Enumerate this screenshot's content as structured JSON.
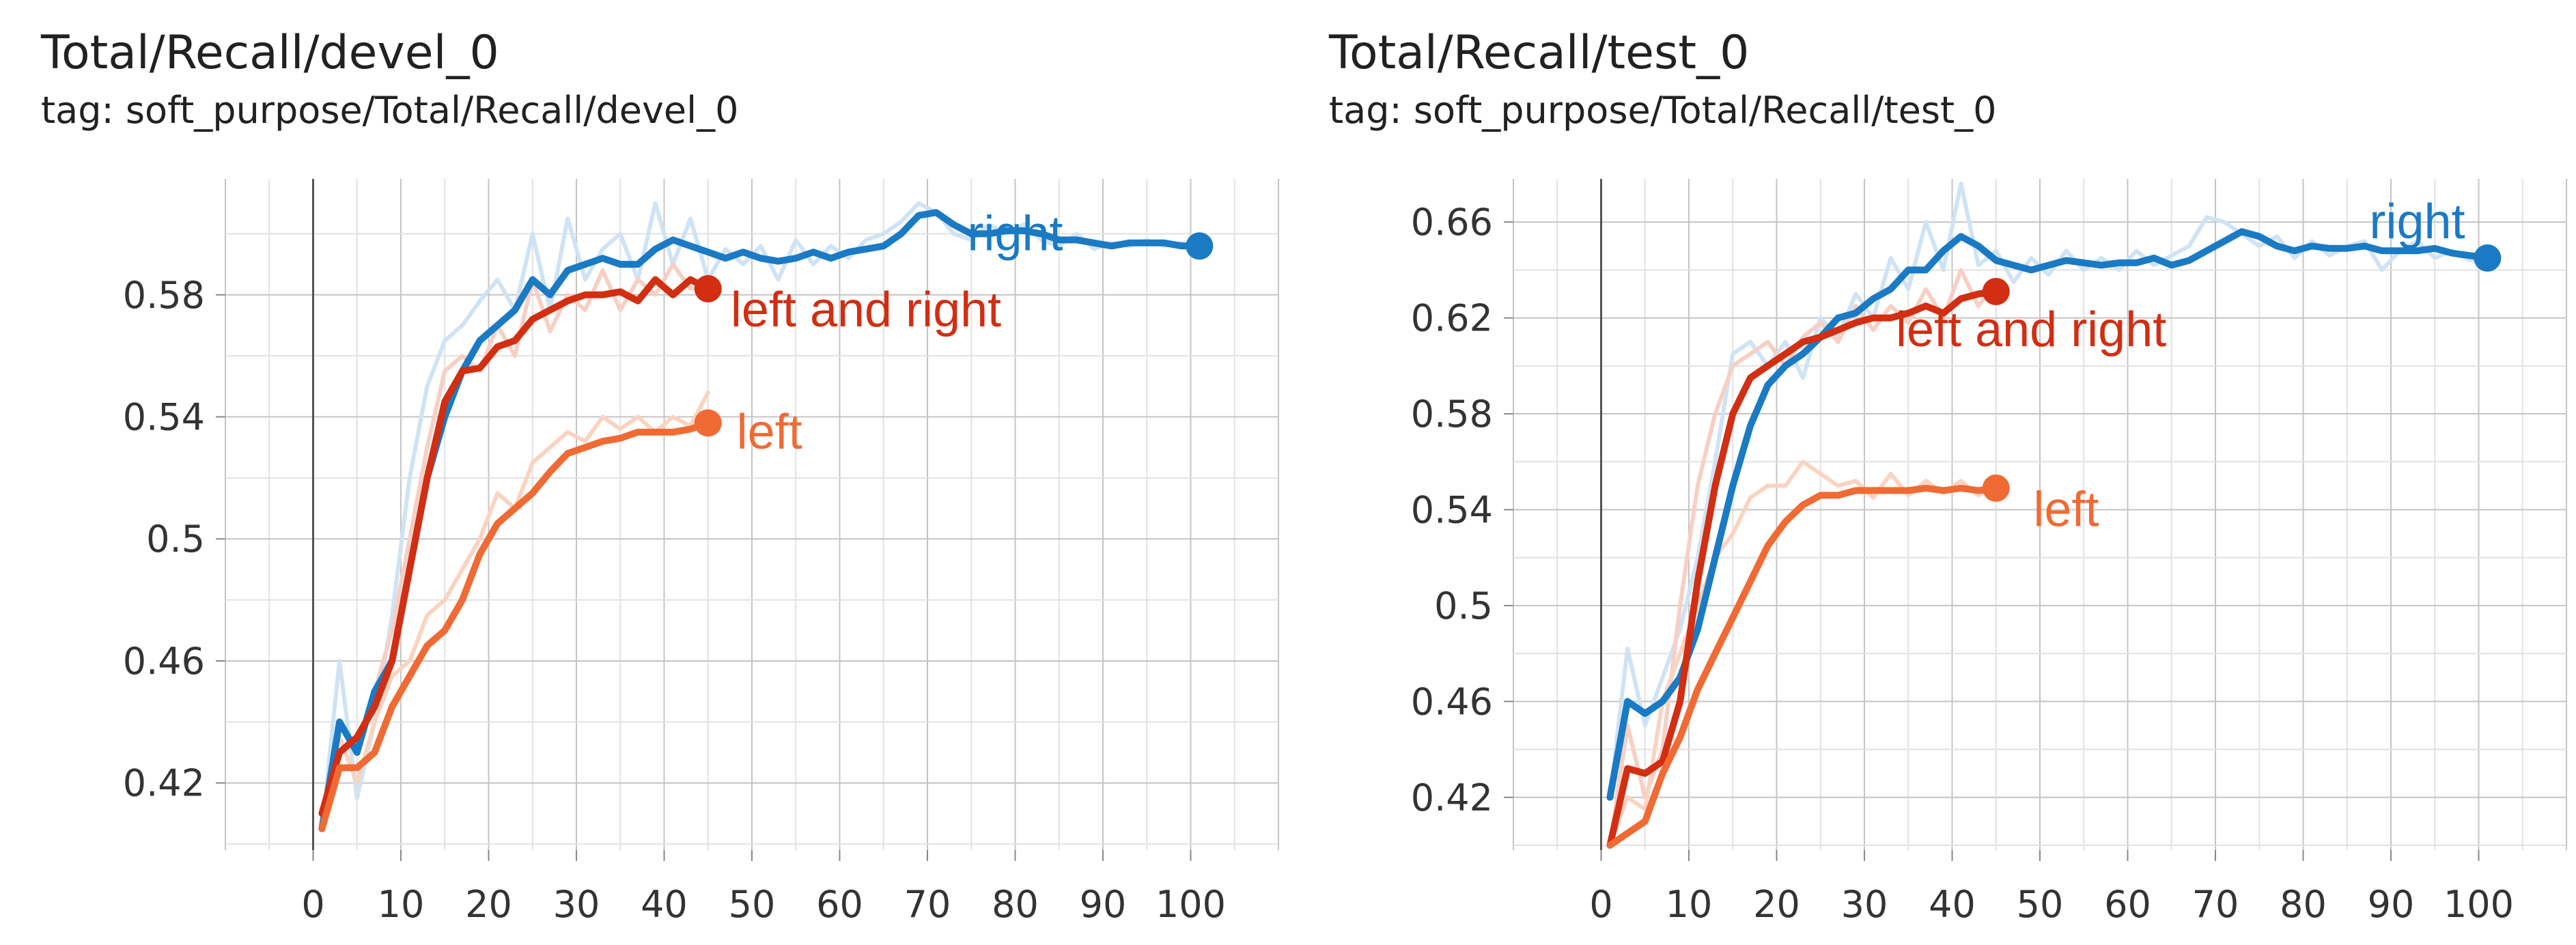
{
  "chart_data": [
    {
      "type": "line",
      "title": "Total/Recall/devel_0",
      "subtitle": "tag: soft_purpose/Total/Recall/devel_0",
      "xlim": [
        -10,
        110
      ],
      "ylim": [
        0.398,
        0.618
      ],
      "xticks": [
        0,
        10,
        20,
        30,
        40,
        50,
        60,
        70,
        80,
        90,
        100
      ],
      "yticks": [
        0.42,
        0.46,
        0.5,
        0.54,
        0.58
      ],
      "ytick_labels": [
        "0.42",
        "0.46",
        "0.5",
        "0.54",
        "0.58"
      ],
      "grid": true,
      "series": [
        {
          "name": "right",
          "color": "#1a7ac4",
          "raw_color": "#cfe3f4",
          "label_at": [
            80,
            0.6
          ],
          "x": [
            1,
            3,
            5,
            7,
            9,
            11,
            13,
            15,
            17,
            19,
            21,
            23,
            25,
            27,
            29,
            31,
            33,
            35,
            37,
            39,
            41,
            43,
            45,
            47,
            49,
            51,
            53,
            55,
            57,
            59,
            61,
            63,
            65,
            67,
            69,
            71,
            73,
            75,
            77,
            79,
            81,
            83,
            85,
            87,
            89,
            91,
            93,
            95,
            97,
            99,
            101
          ],
          "values": [
            0.405,
            0.44,
            0.43,
            0.45,
            0.46,
            0.49,
            0.52,
            0.54,
            0.555,
            0.565,
            0.57,
            0.575,
            0.585,
            0.58,
            0.588,
            0.59,
            0.592,
            0.59,
            0.59,
            0.595,
            0.598,
            0.596,
            0.594,
            0.592,
            0.594,
            0.592,
            0.591,
            0.592,
            0.594,
            0.592,
            0.594,
            0.595,
            0.596,
            0.6,
            0.606,
            0.607,
            0.603,
            0.6,
            0.6,
            0.601,
            0.601,
            0.6,
            0.598,
            0.598,
            0.597,
            0.596,
            0.597,
            0.597,
            0.597,
            0.596,
            0.596
          ],
          "raw_values": [
            0.405,
            0.46,
            0.415,
            0.44,
            0.475,
            0.52,
            0.55,
            0.565,
            0.57,
            0.578,
            0.585,
            0.575,
            0.6,
            0.575,
            0.605,
            0.585,
            0.595,
            0.6,
            0.585,
            0.61,
            0.59,
            0.605,
            0.585,
            0.595,
            0.59,
            0.596,
            0.585,
            0.598,
            0.59,
            0.596,
            0.592,
            0.598,
            0.6,
            0.604,
            0.61,
            0.607,
            0.6,
            0.598,
            0.603,
            0.6,
            0.603,
            0.598,
            0.596,
            0.6,
            0.595,
            0.597,
            0.596,
            0.598,
            0.596,
            0.597,
            0.596
          ]
        },
        {
          "name": "left and right",
          "color": "#d12e12",
          "raw_color": "#f7cfc4",
          "label_at": [
            63,
            0.575
          ],
          "x": [
            1,
            3,
            5,
            7,
            9,
            11,
            13,
            15,
            17,
            19,
            21,
            23,
            25,
            27,
            29,
            31,
            33,
            35,
            37,
            39,
            41,
            43,
            45
          ],
          "values": [
            0.41,
            0.43,
            0.435,
            0.445,
            0.46,
            0.49,
            0.52,
            0.545,
            0.555,
            0.556,
            0.563,
            0.565,
            0.572,
            0.575,
            0.578,
            0.58,
            0.58,
            0.581,
            0.578,
            0.585,
            0.58,
            0.585,
            0.582
          ],
          "raw_values": [
            0.41,
            0.44,
            0.43,
            0.45,
            0.47,
            0.5,
            0.53,
            0.555,
            0.56,
            0.555,
            0.57,
            0.56,
            0.585,
            0.568,
            0.58,
            0.575,
            0.588,
            0.575,
            0.585,
            0.58,
            0.59,
            0.582,
            0.583
          ]
        },
        {
          "name": "left",
          "color": "#f06a33",
          "raw_color": "#fbd3c1",
          "label_at": [
            52,
            0.535
          ],
          "x": [
            1,
            3,
            5,
            7,
            9,
            11,
            13,
            15,
            17,
            19,
            21,
            23,
            25,
            27,
            29,
            31,
            33,
            35,
            37,
            39,
            41,
            43,
            45
          ],
          "values": [
            0.405,
            0.425,
            0.425,
            0.43,
            0.445,
            0.455,
            0.465,
            0.47,
            0.48,
            0.495,
            0.505,
            0.51,
            0.515,
            0.522,
            0.528,
            0.53,
            0.532,
            0.533,
            0.535,
            0.535,
            0.535,
            0.536,
            0.538
          ],
          "raw_values": [
            0.405,
            0.435,
            0.42,
            0.44,
            0.455,
            0.46,
            0.475,
            0.48,
            0.49,
            0.5,
            0.515,
            0.51,
            0.525,
            0.53,
            0.535,
            0.532,
            0.54,
            0.536,
            0.54,
            0.535,
            0.54,
            0.537,
            0.548
          ]
        }
      ]
    },
    {
      "type": "line",
      "title": "Total/Recall/test_0",
      "subtitle": "tag: soft_purpose/Total/Recall/test_0",
      "xlim": [
        -10,
        110
      ],
      "ylim": [
        0.398,
        0.678
      ],
      "xticks": [
        0,
        10,
        20,
        30,
        40,
        50,
        60,
        70,
        80,
        90,
        100
      ],
      "yticks": [
        0.42,
        0.46,
        0.5,
        0.54,
        0.58,
        0.62,
        0.66
      ],
      "ytick_labels": [
        "0.42",
        "0.46",
        "0.5",
        "0.54",
        "0.58",
        "0.62",
        "0.66"
      ],
      "grid": true,
      "series": [
        {
          "name": "right",
          "color": "#1a7ac4",
          "raw_color": "#cfe3f4",
          "label_at": [
            93,
            0.66
          ],
          "x": [
            1,
            3,
            5,
            7,
            9,
            11,
            13,
            15,
            17,
            19,
            21,
            23,
            25,
            27,
            29,
            31,
            33,
            35,
            37,
            39,
            41,
            43,
            45,
            47,
            49,
            51,
            53,
            55,
            57,
            59,
            61,
            63,
            65,
            67,
            69,
            71,
            73,
            75,
            77,
            79,
            81,
            83,
            85,
            87,
            89,
            91,
            93,
            95,
            97,
            99,
            101
          ],
          "values": [
            0.42,
            0.46,
            0.455,
            0.46,
            0.47,
            0.49,
            0.52,
            0.55,
            0.575,
            0.592,
            0.6,
            0.605,
            0.612,
            0.62,
            0.622,
            0.628,
            0.632,
            0.64,
            0.64,
            0.648,
            0.654,
            0.65,
            0.644,
            0.642,
            0.64,
            0.642,
            0.644,
            0.643,
            0.642,
            0.643,
            0.643,
            0.645,
            0.642,
            0.644,
            0.648,
            0.652,
            0.656,
            0.654,
            0.65,
            0.648,
            0.65,
            0.649,
            0.649,
            0.65,
            0.648,
            0.648,
            0.648,
            0.649,
            0.647,
            0.646,
            0.645
          ],
          "raw_values": [
            0.42,
            0.482,
            0.45,
            0.47,
            0.49,
            0.52,
            0.56,
            0.605,
            0.61,
            0.6,
            0.61,
            0.595,
            0.62,
            0.612,
            0.63,
            0.62,
            0.645,
            0.632,
            0.66,
            0.64,
            0.676,
            0.642,
            0.648,
            0.635,
            0.645,
            0.638,
            0.648,
            0.64,
            0.645,
            0.64,
            0.648,
            0.642,
            0.646,
            0.65,
            0.662,
            0.66,
            0.655,
            0.65,
            0.654,
            0.645,
            0.652,
            0.646,
            0.65,
            0.652,
            0.64,
            0.648,
            0.652,
            0.645,
            0.648,
            0.644,
            0.645
          ]
        },
        {
          "name": "left and right",
          "color": "#d12e12",
          "raw_color": "#f7cfc4",
          "label_at": [
            49,
            0.615
          ],
          "x": [
            1,
            3,
            5,
            7,
            9,
            11,
            13,
            15,
            17,
            19,
            21,
            23,
            25,
            27,
            29,
            31,
            33,
            35,
            37,
            39,
            41,
            43,
            45
          ],
          "values": [
            0.4,
            0.432,
            0.43,
            0.435,
            0.46,
            0.51,
            0.55,
            0.58,
            0.595,
            0.6,
            0.605,
            0.61,
            0.612,
            0.615,
            0.618,
            0.62,
            0.62,
            0.622,
            0.625,
            0.622,
            0.628,
            0.63,
            0.631
          ],
          "raw_values": [
            0.4,
            0.45,
            0.42,
            0.44,
            0.5,
            0.55,
            0.58,
            0.6,
            0.605,
            0.61,
            0.6,
            0.612,
            0.618,
            0.61,
            0.625,
            0.615,
            0.625,
            0.618,
            0.632,
            0.62,
            0.64,
            0.625,
            0.635
          ]
        },
        {
          "name": "left",
          "color": "#f06a33",
          "raw_color": "#fbd3c1",
          "label_at": [
            53,
            0.54
          ],
          "x": [
            1,
            3,
            5,
            7,
            9,
            11,
            13,
            15,
            17,
            19,
            21,
            23,
            25,
            27,
            29,
            31,
            33,
            35,
            37,
            39,
            41,
            43,
            45
          ],
          "values": [
            0.4,
            0.405,
            0.41,
            0.43,
            0.445,
            0.465,
            0.48,
            0.495,
            0.51,
            0.525,
            0.535,
            0.542,
            0.546,
            0.546,
            0.548,
            0.548,
            0.548,
            0.548,
            0.549,
            0.548,
            0.549,
            0.548,
            0.549
          ],
          "raw_values": [
            0.4,
            0.42,
            0.415,
            0.46,
            0.48,
            0.5,
            0.52,
            0.53,
            0.545,
            0.55,
            0.55,
            0.56,
            0.555,
            0.55,
            0.552,
            0.545,
            0.555,
            0.546,
            0.552,
            0.547,
            0.552,
            0.546,
            0.55
          ]
        }
      ]
    }
  ]
}
